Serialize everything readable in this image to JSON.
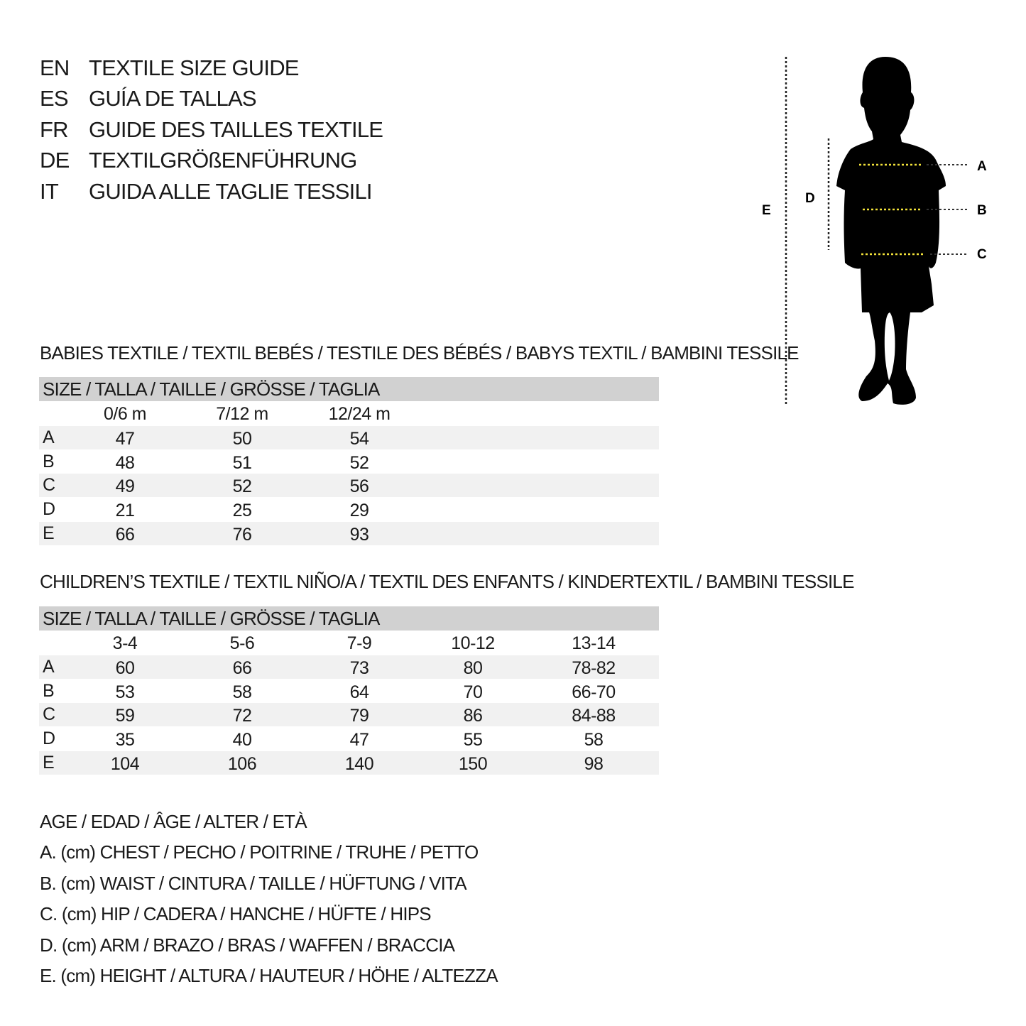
{
  "header": [
    {
      "code": "EN",
      "text": "TEXTILE SIZE GUIDE"
    },
    {
      "code": "ES",
      "text": "GUÍA DE TALLAS"
    },
    {
      "code": "FR",
      "text": "GUIDE DES TAILLES TEXTILE"
    },
    {
      "code": "DE",
      "text": "TEXTILGRÖßENFÜHRUNG"
    },
    {
      "code": "IT",
      "text": "GUIDA ALLE TAGLIE TESSILI"
    }
  ],
  "figure": {
    "labels": {
      "a": "A",
      "b": "B",
      "c": "C",
      "d": "D",
      "e": "E"
    },
    "accent": "#f2e23a"
  },
  "babies": {
    "title": "BABIES TEXTILE / TEXTIL BEBÉS / TESTILE DES BÉBÉS / BABYS TEXTIL / BAMBINI TESSILE",
    "size_header": "SIZE / TALLA / TAILLE / GRÖSSE / TAGLIA",
    "columns": [
      "0/6 m",
      "7/12 m",
      "12/24 m"
    ],
    "rows": [
      {
        "label": "A",
        "values": [
          "47",
          "50",
          "54"
        ]
      },
      {
        "label": "B",
        "values": [
          "48",
          "51",
          "52"
        ]
      },
      {
        "label": "C",
        "values": [
          "49",
          "52",
          "56"
        ]
      },
      {
        "label": "D",
        "values": [
          "21",
          "25",
          "29"
        ]
      },
      {
        "label": "E",
        "values": [
          "66",
          "76",
          "93"
        ]
      }
    ]
  },
  "children": {
    "title": "CHILDREN’S TEXTILE / TEXTIL NIÑO/A / TEXTIL DES ENFANTS / KINDERTEXTIL / BAMBINI TESSILE",
    "size_header": "SIZE / TALLA / TAILLE / GRÖSSE / TAGLIA",
    "columns": [
      "3-4",
      "5-6",
      "7-9",
      "10-12",
      "13-14"
    ],
    "rows": [
      {
        "label": "A",
        "values": [
          "60",
          "66",
          "73",
          "80",
          "78-82"
        ]
      },
      {
        "label": "B",
        "values": [
          "53",
          "58",
          "64",
          "70",
          "66-70"
        ]
      },
      {
        "label": "C",
        "values": [
          "59",
          "72",
          "79",
          "86",
          "84-88"
        ]
      },
      {
        "label": "D",
        "values": [
          "35",
          "40",
          "47",
          "55",
          "58"
        ]
      },
      {
        "label": "E",
        "values": [
          "104",
          "106",
          "140",
          "150",
          "98"
        ]
      }
    ]
  },
  "legend": [
    "AGE / EDAD / ÂGE / ALTER / ETÀ",
    "A. (cm) CHEST / PECHO / POITRINE / TRUHE / PETTO",
    "B. (cm) WAIST / CINTURA / TAILLE / HÜFTUNG / VITA",
    "C. (cm) HIP / CADERA / HANCHE / HÜFTE / HIPS",
    "D. (cm) ARM / BRAZO / BRAS / WAFFEN / BRACCIA",
    "E. (cm) HEIGHT / ALTURA / HAUTEUR / HÖHE / ALTEZZA"
  ]
}
